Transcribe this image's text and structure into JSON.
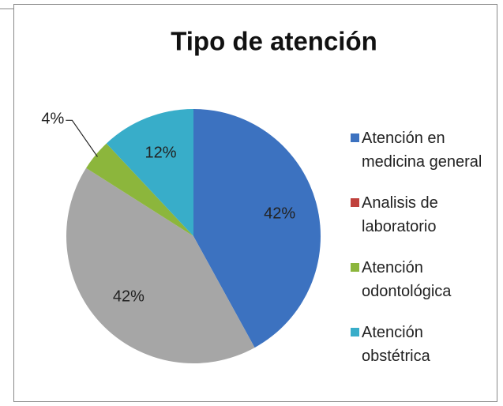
{
  "chart_data": {
    "type": "pie",
    "title": "Tipo de atención",
    "categories": [
      "Atención en medicina general",
      "Analisis de laboratorio",
      null,
      "Atención odontológica",
      "Atención obstétrica"
    ],
    "values": [
      42,
      0,
      42,
      4,
      12
    ],
    "value_labels": [
      "42%",
      null,
      "42%",
      "4%",
      "12%"
    ],
    "colors": [
      "#3c72c0",
      "#c0413c",
      "#a6a6a6",
      "#8cb63c",
      "#38adc9"
    ],
    "legend": "right"
  }
}
